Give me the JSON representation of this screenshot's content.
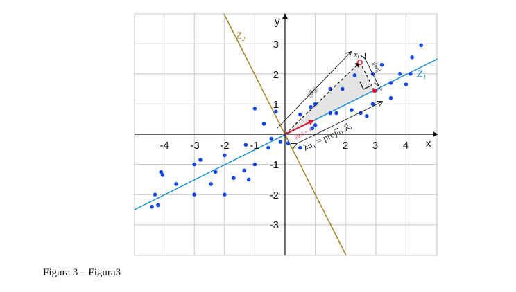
{
  "caption": "Figura 3 – Figura3",
  "axes": {
    "x_label": "x",
    "y_label": "y"
  },
  "x_ticks": [
    "-4",
    "-3",
    "-2",
    "-1",
    "2",
    "3",
    "4"
  ],
  "y_ticks": [
    "3",
    "2",
    "1",
    "-1",
    "-2",
    "-3"
  ],
  "lines": {
    "z1": {
      "label": "Z₁",
      "color": "#1b8fd8"
    },
    "z2": {
      "label": "Z₂",
      "color": "#a38428"
    }
  },
  "annotations": {
    "xi": "xᵢ",
    "xi_prime": "xᵢ′",
    "norm_xi": "||x⃗ᵢ||",
    "norm_w": "||w||",
    "norm_u1": "||u⃗₁|| = 1",
    "projection": "λu₁ = projᵤ⃗₁ x⃗ᵢ"
  },
  "colors": {
    "points": "#1448e6",
    "unit_vector": "#e0142c",
    "triangle": "#e4e4e4"
  },
  "points": [
    [
      -4.4,
      -2.4
    ],
    [
      -4.2,
      -2.35
    ],
    [
      -4.3,
      -2.0
    ],
    [
      -4.05,
      -1.35
    ],
    [
      -4.1,
      -1.25
    ],
    [
      -3.6,
      -1.65
    ],
    [
      -3.0,
      -1.0
    ],
    [
      -3.0,
      -2.0
    ],
    [
      -2.8,
      -0.85
    ],
    [
      -2.45,
      -1.65
    ],
    [
      -2.3,
      -1.25
    ],
    [
      -2.0,
      -0.7
    ],
    [
      -2.0,
      -2.0
    ],
    [
      -1.7,
      -1.45
    ],
    [
      -1.35,
      -1.2
    ],
    [
      -1.2,
      -1.5
    ],
    [
      -1.0,
      -1.0
    ],
    [
      -1.3,
      -0.35
    ],
    [
      -0.55,
      -0.45
    ],
    [
      -1.0,
      0.85
    ],
    [
      -0.7,
      0.35
    ],
    [
      -0.3,
      0.75
    ],
    [
      -0.15,
      -0.25
    ],
    [
      -0.45,
      -0.15
    ],
    [
      0.5,
      0.65
    ],
    [
      0.85,
      0.9
    ],
    [
      1.0,
      1.0
    ],
    [
      0.9,
      0.2
    ],
    [
      1.0,
      0.3
    ],
    [
      1.5,
      1.5
    ],
    [
      1.5,
      0.7
    ],
    [
      1.7,
      0.7
    ],
    [
      1.9,
      1.5
    ],
    [
      2.2,
      0.8
    ],
    [
      2.5,
      0.7
    ],
    [
      2.3,
      1.95
    ],
    [
      2.7,
      0.6
    ],
    [
      2.9,
      2.0
    ],
    [
      2.9,
      1.0
    ],
    [
      3.0,
      1.45
    ],
    [
      3.2,
      2.3
    ],
    [
      3.5,
      1.2
    ],
    [
      3.5,
      1.7
    ],
    [
      3.8,
      2.0
    ],
    [
      4.0,
      1.65
    ],
    [
      4.2,
      2.55
    ],
    [
      4.15,
      2.0
    ],
    [
      4.5,
      2.95
    ],
    [
      0.5,
      -0.45
    ],
    [
      0.1,
      -0.3
    ]
  ]
}
